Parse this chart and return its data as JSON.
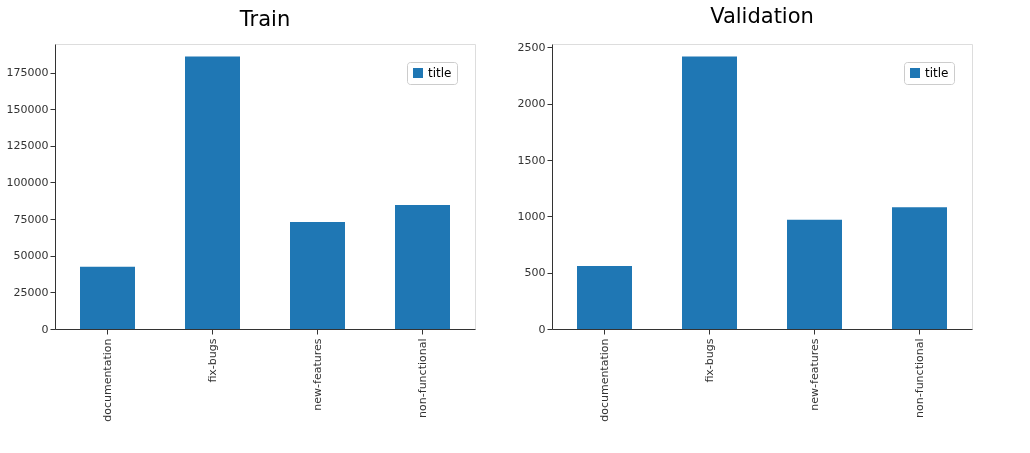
{
  "chart_data": [
    {
      "type": "bar",
      "title": "Train",
      "categories": [
        "documentation",
        "fix-bugs",
        "new-features",
        "non-functional"
      ],
      "series": [
        {
          "name": "title",
          "color": "#1f77b4",
          "values": [
            42500,
            186000,
            73000,
            84700
          ]
        }
      ],
      "ylim": [
        0,
        194500
      ],
      "yticks": [
        0,
        25000,
        50000,
        75000,
        100000,
        125000,
        150000,
        175000
      ],
      "legend": "top right",
      "grid": false
    },
    {
      "type": "bar",
      "title": "Validation",
      "categories": [
        "documentation",
        "fix-bugs",
        "new-features",
        "non-functional"
      ],
      "series": [
        {
          "name": "title",
          "color": "#1f77b4",
          "values": [
            560,
            2420,
            970,
            1080
          ]
        }
      ],
      "ylim": [
        0,
        2530
      ],
      "yticks": [
        0,
        500,
        1000,
        1500,
        2000,
        2500
      ],
      "legend": "top right",
      "grid": false
    }
  ]
}
